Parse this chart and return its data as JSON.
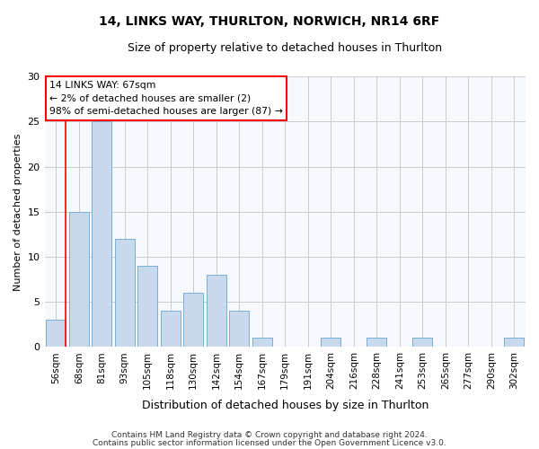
{
  "title1": "14, LINKS WAY, THURLTON, NORWICH, NR14 6RF",
  "title2": "Size of property relative to detached houses in Thurlton",
  "xlabel": "Distribution of detached houses by size in Thurlton",
  "ylabel": "Number of detached properties",
  "categories": [
    "56sqm",
    "68sqm",
    "81sqm",
    "93sqm",
    "105sqm",
    "118sqm",
    "130sqm",
    "142sqm",
    "154sqm",
    "167sqm",
    "179sqm",
    "191sqm",
    "204sqm",
    "216sqm",
    "228sqm",
    "241sqm",
    "253sqm",
    "265sqm",
    "277sqm",
    "290sqm",
    "302sqm"
  ],
  "values": [
    3,
    15,
    25,
    12,
    9,
    4,
    6,
    8,
    4,
    1,
    0,
    0,
    1,
    0,
    1,
    0,
    1,
    0,
    0,
    0,
    1
  ],
  "bar_color": "#c9d9ed",
  "bar_edge_color": "#7aaed4",
  "annotation_line1": "14 LINKS WAY: 67sqm",
  "annotation_line2": "← 2% of detached houses are smaller (2)",
  "annotation_line3": "98% of semi-detached houses are larger (87) →",
  "annotation_box_color": "white",
  "annotation_box_edge": "red",
  "vline_color": "red",
  "ylim": [
    0,
    30
  ],
  "yticks": [
    0,
    5,
    10,
    15,
    20,
    25,
    30
  ],
  "grid_color": "#cccccc",
  "footer1": "Contains HM Land Registry data © Crown copyright and database right 2024.",
  "footer2": "Contains public sector information licensed under the Open Government Licence v3.0.",
  "bg_color": "#ffffff",
  "plot_bg_color": "#f5f8fd"
}
